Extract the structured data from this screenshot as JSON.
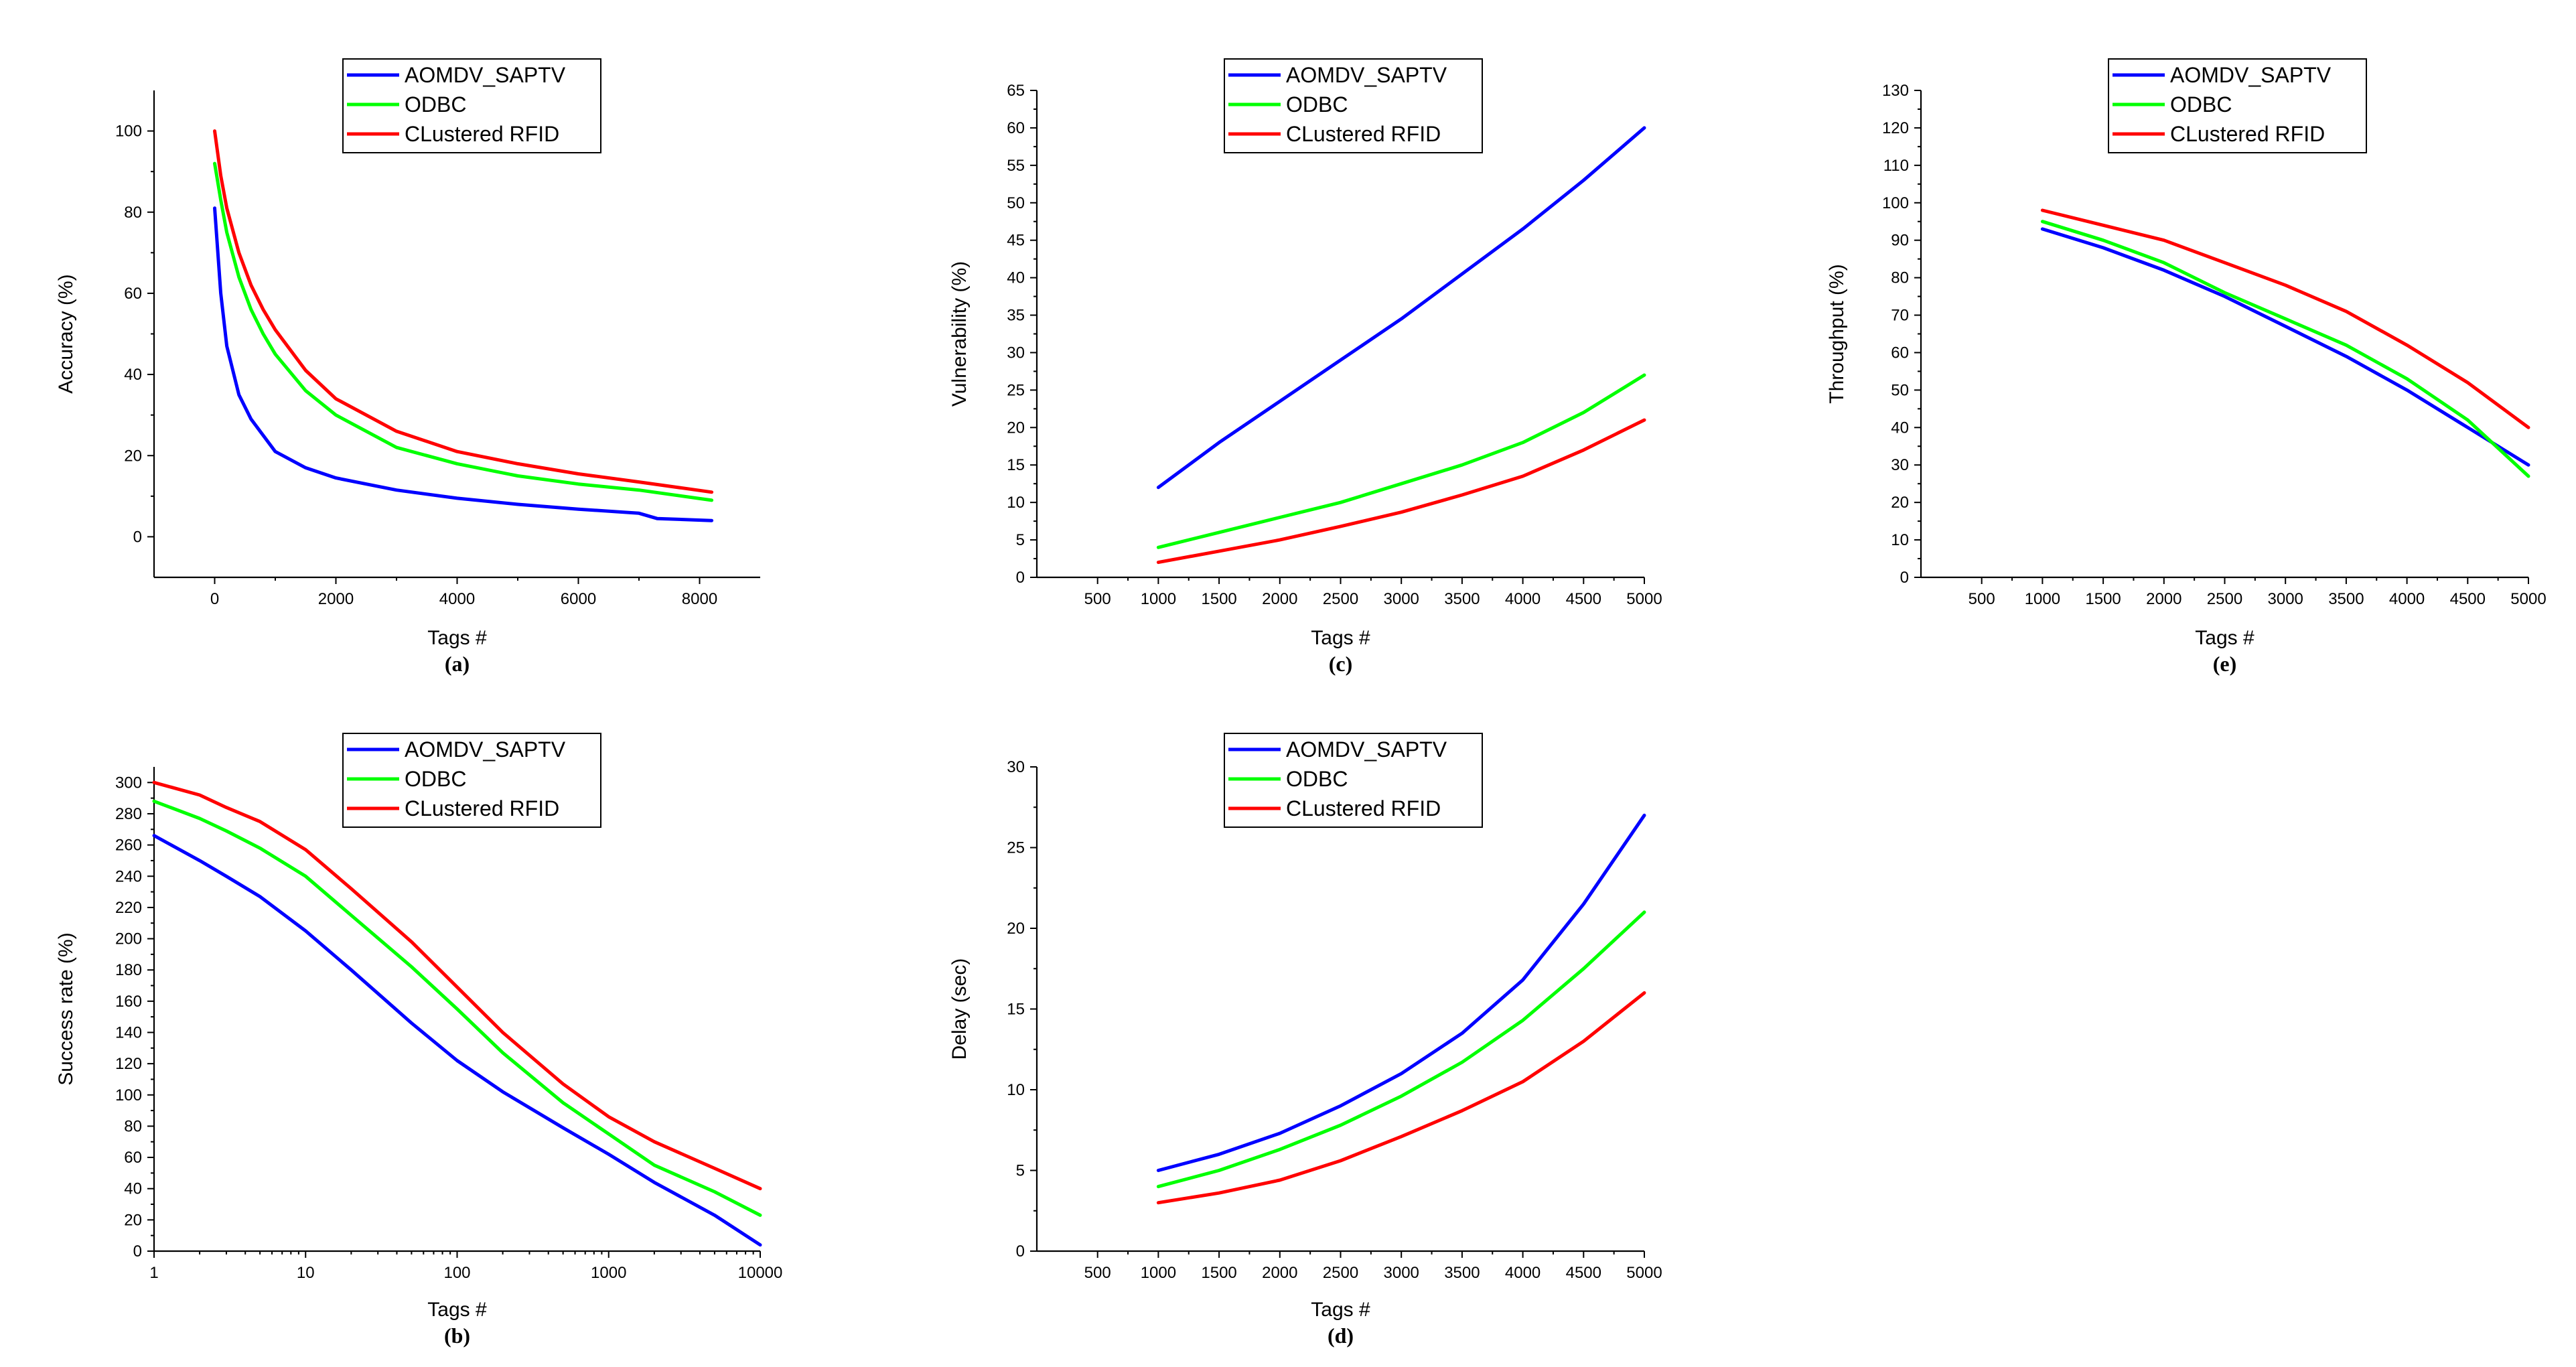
{
  "chart_data": [
    {
      "id": "a",
      "type": "line",
      "caption": "(a)",
      "xlabel": "Tags #",
      "ylabel": "Accuracy (%)",
      "xlim": [
        -1000,
        9000
      ],
      "ylim": [
        -10,
        110
      ],
      "xticks": [
        0,
        2000,
        4000,
        6000,
        8000
      ],
      "yticks": [
        0,
        20,
        40,
        60,
        80,
        100
      ],
      "xscale": "linear",
      "legend_position": "top-center",
      "series": [
        {
          "name": "AOMDV_SAPTV",
          "color": "#0000ff",
          "x": [
            0,
            100,
            200,
            400,
            600,
            800,
            1000,
            1500,
            2000,
            3000,
            4000,
            5000,
            6000,
            7000,
            7300,
            8200
          ],
          "y": [
            81,
            60,
            47,
            35,
            29,
            25,
            21,
            17,
            14.5,
            11.5,
            9.5,
            8,
            6.8,
            5.8,
            4.5,
            4
          ]
        },
        {
          "name": "ODBC",
          "color": "#00ff00",
          "x": [
            0,
            100,
            200,
            400,
            600,
            800,
            1000,
            1500,
            2000,
            3000,
            4000,
            5000,
            6000,
            7000,
            8200
          ],
          "y": [
            92,
            83,
            75,
            64,
            56,
            50,
            45,
            36,
            30,
            22,
            18,
            15,
            13,
            11.5,
            9
          ]
        },
        {
          "name": "CLustered RFID",
          "color": "#ff0000",
          "x": [
            0,
            100,
            200,
            400,
            600,
            800,
            1000,
            1500,
            2000,
            3000,
            4000,
            5000,
            6000,
            7000,
            8200
          ],
          "y": [
            100,
            89,
            81,
            70,
            62,
            56,
            51,
            41,
            34,
            26,
            21,
            18,
            15.5,
            13.5,
            11
          ]
        }
      ]
    },
    {
      "id": "c",
      "type": "line",
      "caption": "(c)",
      "xlabel": "Tags #",
      "ylabel": "Vulnerability (%)",
      "xlim": [
        0,
        5000
      ],
      "ylim": [
        0,
        65
      ],
      "xticks": [
        500,
        1000,
        1500,
        2000,
        2500,
        3000,
        3500,
        4000,
        4500,
        5000
      ],
      "yticks": [
        0,
        5,
        10,
        15,
        20,
        25,
        30,
        35,
        40,
        45,
        50,
        55,
        60,
        65
      ],
      "xscale": "linear",
      "legend_position": "top-center",
      "series": [
        {
          "name": "AOMDV_SAPTV",
          "color": "#0000ff",
          "x": [
            1000,
            1500,
            2000,
            2500,
            3000,
            3500,
            4000,
            4500,
            5000
          ],
          "y": [
            12,
            18,
            23.5,
            29,
            34.5,
            40.5,
            46.5,
            53,
            60
          ]
        },
        {
          "name": "ODBC",
          "color": "#00ff00",
          "x": [
            1000,
            1500,
            2000,
            2500,
            3000,
            3500,
            4000,
            4500,
            5000
          ],
          "y": [
            4,
            6,
            8,
            10,
            12.5,
            15,
            18,
            22,
            27
          ]
        },
        {
          "name": "CLustered RFID",
          "color": "#ff0000",
          "x": [
            1000,
            1500,
            2000,
            2500,
            3000,
            3500,
            4000,
            4500,
            5000
          ],
          "y": [
            2,
            3.5,
            5,
            6.8,
            8.7,
            11,
            13.5,
            17,
            21
          ]
        }
      ]
    },
    {
      "id": "e",
      "type": "line",
      "caption": "(e)",
      "xlabel": "Tags #",
      "ylabel": "Throughput (%)",
      "xlim": [
        0,
        5000
      ],
      "ylim": [
        0,
        130
      ],
      "xticks": [
        500,
        1000,
        1500,
        2000,
        2500,
        3000,
        3500,
        4000,
        4500,
        5000
      ],
      "yticks": [
        0,
        10,
        20,
        30,
        40,
        50,
        60,
        70,
        80,
        90,
        100,
        110,
        120,
        130
      ],
      "xscale": "linear",
      "legend_position": "top-center",
      "series": [
        {
          "name": "AOMDV_SAPTV",
          "color": "#0000ff",
          "x": [
            1000,
            1500,
            2000,
            2500,
            3000,
            3500,
            4000,
            4500,
            5000
          ],
          "y": [
            93,
            88,
            82,
            75,
            67,
            59,
            50,
            40,
            30
          ]
        },
        {
          "name": "ODBC",
          "color": "#00ff00",
          "x": [
            1000,
            1500,
            2000,
            2500,
            3000,
            3500,
            4000,
            4500,
            5000
          ],
          "y": [
            95,
            90,
            84,
            76,
            69,
            62,
            53,
            42,
            27
          ]
        },
        {
          "name": "CLustered RFID",
          "color": "#ff0000",
          "x": [
            1000,
            1500,
            2000,
            2500,
            3000,
            3500,
            4000,
            4500,
            5000
          ],
          "y": [
            98,
            94,
            90,
            84,
            78,
            71,
            62,
            52,
            40
          ]
        }
      ]
    },
    {
      "id": "b",
      "type": "line",
      "caption": "(b)",
      "xlabel": "Tags #",
      "ylabel": "Success rate (%)",
      "xlim": [
        1,
        10000
      ],
      "ylim": [
        0,
        310
      ],
      "xticks": [
        1,
        10,
        100,
        1000,
        10000
      ],
      "yticks": [
        0,
        20,
        40,
        60,
        80,
        100,
        120,
        140,
        160,
        180,
        200,
        220,
        240,
        260,
        280,
        300
      ],
      "xscale": "log",
      "legend_position": "top-center",
      "series": [
        {
          "name": "AOMDV_SAPTV",
          "color": "#0000ff",
          "x": [
            1,
            2,
            3,
            5,
            10,
            20,
            50,
            100,
            200,
            500,
            1000,
            2000,
            5000,
            10000
          ],
          "y": [
            266,
            250,
            240,
            227,
            205,
            180,
            146,
            122,
            102,
            79,
            62,
            44,
            23,
            4
          ]
        },
        {
          "name": "ODBC",
          "color": "#00ff00",
          "x": [
            1,
            2,
            3,
            5,
            10,
            20,
            50,
            100,
            200,
            500,
            1000,
            2000,
            5000,
            10000
          ],
          "y": [
            288,
            277,
            269,
            258,
            240,
            215,
            182,
            155,
            127,
            95,
            75,
            55,
            38,
            23
          ]
        },
        {
          "name": "CLustered RFID",
          "color": "#ff0000",
          "x": [
            1,
            2,
            3,
            5,
            10,
            20,
            50,
            100,
            200,
            500,
            1000,
            2000,
            5000,
            10000
          ],
          "y": [
            300,
            292,
            284,
            275,
            257,
            232,
            198,
            169,
            140,
            107,
            86,
            70,
            53,
            40
          ]
        }
      ]
    },
    {
      "id": "d",
      "type": "line",
      "caption": "(d)",
      "xlabel": "Tags #",
      "ylabel": "Delay (sec)",
      "xlim": [
        0,
        5000
      ],
      "ylim": [
        0,
        30
      ],
      "xticks": [
        500,
        1000,
        1500,
        2000,
        2500,
        3000,
        3500,
        4000,
        4500,
        5000
      ],
      "yticks": [
        0,
        5,
        10,
        15,
        20,
        25,
        30
      ],
      "xscale": "linear",
      "legend_position": "top-center",
      "series": [
        {
          "name": "AOMDV_SAPTV",
          "color": "#0000ff",
          "x": [
            1000,
            1500,
            2000,
            2500,
            3000,
            3500,
            4000,
            4500,
            5000
          ],
          "y": [
            5,
            6,
            7.3,
            9,
            11,
            13.5,
            16.8,
            21.5,
            27
          ]
        },
        {
          "name": "ODBC",
          "color": "#00ff00",
          "x": [
            1000,
            1500,
            2000,
            2500,
            3000,
            3500,
            4000,
            4500,
            5000
          ],
          "y": [
            4,
            5,
            6.3,
            7.8,
            9.6,
            11.7,
            14.3,
            17.5,
            21
          ]
        },
        {
          "name": "CLustered RFID",
          "color": "#ff0000",
          "x": [
            1000,
            1500,
            2000,
            2500,
            3000,
            3500,
            4000,
            4500,
            5000
          ],
          "y": [
            3,
            3.6,
            4.4,
            5.6,
            7.1,
            8.7,
            10.5,
            13,
            16
          ]
        }
      ]
    }
  ]
}
